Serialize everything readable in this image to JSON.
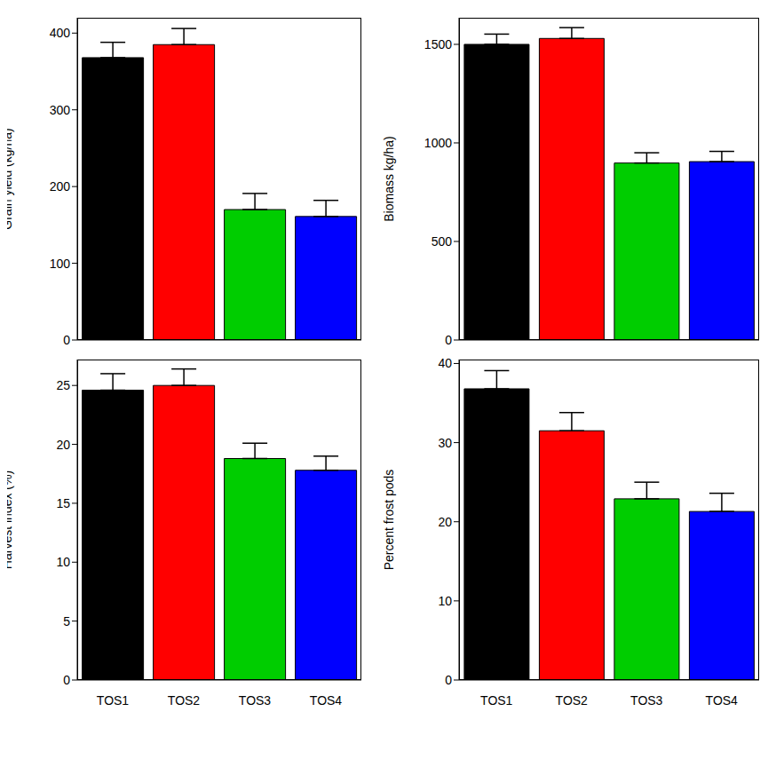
{
  "chart_data": [
    {
      "type": "bar",
      "categories": [
        "TOS1",
        "TOS2",
        "TOS3",
        "TOS4"
      ],
      "values": [
        368,
        385,
        170,
        161
      ],
      "errors": [
        20,
        21,
        21,
        21
      ],
      "colors": [
        "#000000",
        "#ff0000",
        "#00cd00",
        "#0000ff"
      ],
      "ylabel": "Grain yield (kg/ha)",
      "ylim": [
        0,
        420
      ],
      "yticks": [
        0,
        100,
        200,
        300,
        400
      ],
      "tick_labels": "y"
    },
    {
      "type": "bar",
      "categories": [
        "TOS1",
        "TOS2",
        "TOS3",
        "TOS4"
      ],
      "values": [
        1500,
        1530,
        898,
        905
      ],
      "errors": [
        52,
        55,
        52,
        52
      ],
      "colors": [
        "#000000",
        "#ff0000",
        "#00cd00",
        "#0000ff"
      ],
      "ylabel": "Biomass kg/ha)",
      "ylim": [
        0,
        1635
      ],
      "yticks": [
        0,
        500,
        1000,
        1500
      ],
      "tick_labels": "y"
    },
    {
      "type": "bar",
      "categories": [
        "TOS1",
        "TOS2",
        "TOS3",
        "TOS4"
      ],
      "values": [
        24.6,
        25.0,
        18.8,
        17.8
      ],
      "errors": [
        1.4,
        1.4,
        1.3,
        1.2
      ],
      "colors": [
        "#000000",
        "#ff0000",
        "#00cd00",
        "#0000ff"
      ],
      "ylabel": "Harvest index (%)",
      "ylim": [
        0,
        27.2
      ],
      "yticks": [
        0,
        5,
        10,
        15,
        20,
        25
      ]
    },
    {
      "type": "bar",
      "categories": [
        "TOS1",
        "TOS2",
        "TOS3",
        "TOS4"
      ],
      "values": [
        36.8,
        31.5,
        22.9,
        21.3
      ],
      "errors": [
        2.3,
        2.3,
        2.1,
        2.3
      ],
      "colors": [
        "#000000",
        "#ff0000",
        "#00cd00",
        "#0000ff"
      ],
      "ylabel": "Percent frost pods",
      "ylim": [
        0,
        40.5
      ],
      "yticks": [
        0,
        10,
        20,
        30,
        40
      ]
    }
  ]
}
